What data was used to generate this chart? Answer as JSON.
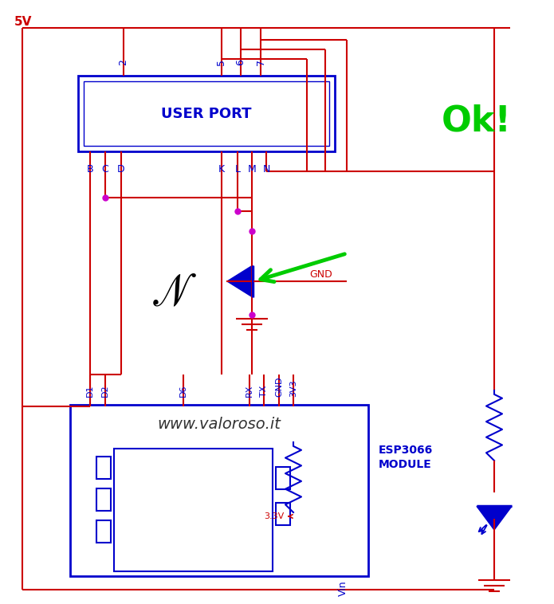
{
  "bg_color": "#ffffff",
  "rc": "#cc0000",
  "bc": "#0000cc",
  "mc": "#cc00cc",
  "gc": "#00cc00",
  "ok_text": "Ok!",
  "url_text": "www.valoroso.it",
  "esp_label1": "ESP3066",
  "esp_label2": "MODULE",
  "user_port_label": "USER PORT",
  "v5": "5V",
  "v33": "3.3V",
  "gnd_label": "GND",
  "vin_label": "Vin",
  "esp_pins": [
    "D1",
    "D2",
    "D6",
    "RX",
    "TX",
    "GND",
    "3V3"
  ]
}
